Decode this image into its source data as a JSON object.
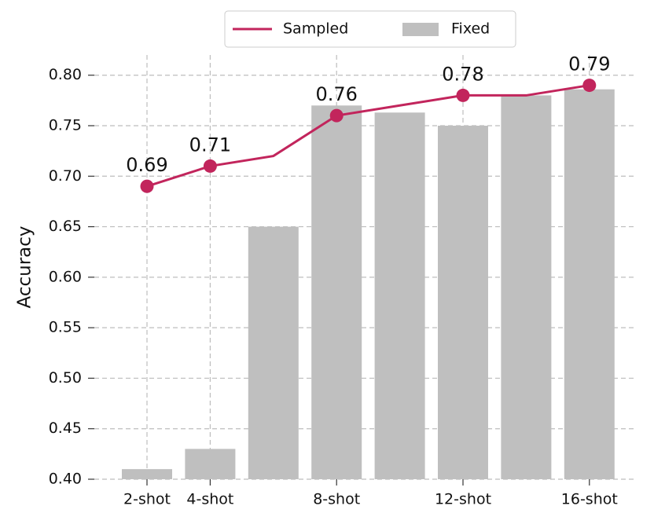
{
  "chart_data": {
    "type": "bar_line",
    "y_label": "Accuracy",
    "categories": [
      "2-shot",
      "4-shot",
      null,
      "8-shot",
      null,
      "12-shot",
      null,
      "16-shot"
    ],
    "series": [
      {
        "name": "Sampled",
        "type": "line",
        "color": "#c2255c",
        "values": [
          0.69,
          0.71,
          0.72,
          0.76,
          0.77,
          0.78,
          0.78,
          0.79
        ],
        "value_labels": [
          "0.69",
          "0.71",
          null,
          "0.76",
          null,
          "0.78",
          null,
          "0.79"
        ]
      },
      {
        "name": "Fixed",
        "type": "bar",
        "color": "#bfbfbf",
        "values": [
          0.41,
          0.43,
          0.65,
          0.77,
          0.763,
          0.75,
          0.78,
          0.786
        ]
      }
    ],
    "ylim": [
      0.4,
      0.82
    ],
    "yticks": [
      {
        "value": 0.4,
        "label": "0.40"
      },
      0.45,
      {
        "value": 0.5,
        "label": "0.50"
      },
      0.55,
      {
        "value": 0.6,
        "label": "0.60"
      },
      0.65,
      {
        "value": 0.7,
        "label": "0.70"
      },
      0.75,
      {
        "value": 0.8,
        "label": "0.80"
      }
    ],
    "grid": true,
    "legend": "top"
  }
}
